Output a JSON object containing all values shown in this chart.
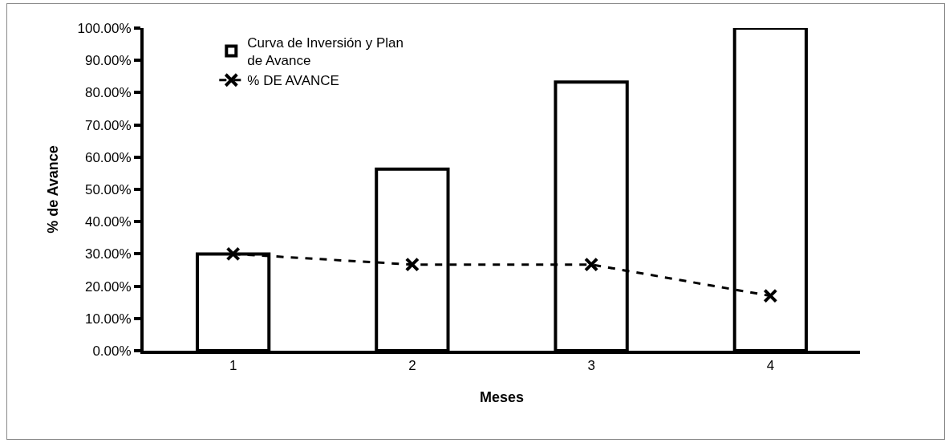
{
  "chart_data": {
    "type": "bar",
    "xlabel": "Meses",
    "ylabel": "% de Avance",
    "categories": [
      "1",
      "2",
      "3",
      "4"
    ],
    "series": [
      {
        "name": "Curva de Inversión y Plan de Avance",
        "color": "#ffffff",
        "values": [
          30,
          56.3,
          83.3,
          100
        ]
      },
      {
        "name": "% DE AVANCE",
        "type": "line",
        "color": "#000000",
        "values": [
          30,
          26.7,
          26.7,
          17
        ],
        "marker": "cross",
        "line_style": "dashed"
      }
    ],
    "ylim": [
      0,
      100
    ],
    "yticks": [
      {
        "value": 0,
        "label": "0.00%"
      },
      {
        "value": 10,
        "label": "10.00%"
      },
      {
        "value": 20,
        "label": "20.00%"
      },
      {
        "value": 30,
        "label": "30.00%"
      },
      {
        "value": 40,
        "label": "40.00%"
      },
      {
        "value": 50,
        "label": "50.00%"
      },
      {
        "value": 60,
        "label": "60.00%"
      },
      {
        "value": 70,
        "label": "70.00%"
      },
      {
        "value": 80,
        "label": "80.00%"
      },
      {
        "value": 90,
        "label": "90.00%"
      },
      {
        "value": 100,
        "label": "100.00%"
      }
    ],
    "grid": false,
    "legend": "top left"
  }
}
